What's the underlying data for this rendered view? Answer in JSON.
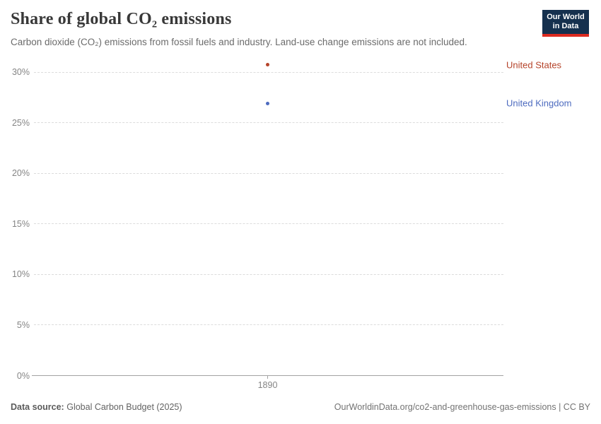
{
  "header": {
    "title": "Share of global CO₂ emissions",
    "subtitle": "Carbon dioxide (CO₂) emissions from fossil fuels and industry. Land-use change emissions are not included."
  },
  "logo": {
    "line1": "Our World",
    "line2": "in Data",
    "bg_color": "#15304e",
    "accent_color": "#dc2a20"
  },
  "chart_data": {
    "type": "scatter",
    "title": "Share of global CO₂ emissions",
    "x": [
      1890
    ],
    "x_tick_labels": [
      "1890"
    ],
    "series": [
      {
        "name": "United States",
        "values": [
          30.7
        ],
        "color": "#b5432a"
      },
      {
        "name": "United Kingdom",
        "values": [
          26.9
        ],
        "color": "#4d6bbf"
      }
    ],
    "xlabel": "",
    "ylabel": "",
    "y_ticks": [
      0,
      5,
      10,
      15,
      20,
      25,
      30
    ],
    "y_tick_suffix": "%",
    "ylim": [
      0,
      30
    ],
    "grid": "horizontal-dashed",
    "legend_position": "right"
  },
  "footer": {
    "source_label": "Data source:",
    "source_value": "Global Carbon Budget (2025)",
    "right_text": "OurWorldinData.org/co2-and-greenhouse-gas-emissions | CC BY"
  }
}
